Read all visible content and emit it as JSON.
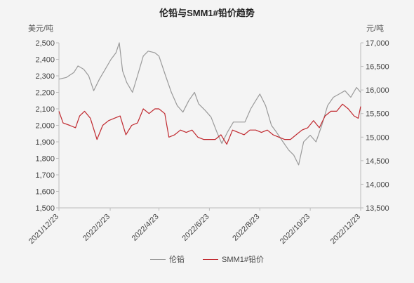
{
  "chart_data": {
    "type": "line",
    "title": "伦铅与SMM1#铅价趋势",
    "y_left_unit": "美元/吨",
    "y_right_unit": "元/吨",
    "y_left_lim": [
      1500,
      2500
    ],
    "y_right_lim": [
      13500,
      17000
    ],
    "y_left_ticks": [
      "1,500",
      "1,600",
      "1,700",
      "1,800",
      "1,900",
      "2,000",
      "2,100",
      "2,200",
      "2,300",
      "2,400",
      "2,500"
    ],
    "y_right_ticks": [
      "13,500",
      "14,000",
      "14,500",
      "15,000",
      "15,500",
      "16,000",
      "16,500",
      "17,000"
    ],
    "x_ticks": [
      "2021/12/23",
      "2022/2/23",
      "2022/4/23",
      "2022/6/23",
      "2022/8/23",
      "2022/10/23",
      "2022/12/23"
    ],
    "x_range": [
      "2021-12-23",
      "2022-12-23"
    ],
    "grid": false,
    "legend_position": "bottom",
    "series": [
      {
        "name": "伦铅",
        "axis": "left",
        "color": "#9a9a9a",
        "points": [
          [
            "2021-12-23",
            2280
          ],
          [
            "2022-01-01",
            2290
          ],
          [
            "2022-01-10",
            2320
          ],
          [
            "2022-01-15",
            2360
          ],
          [
            "2022-01-22",
            2340
          ],
          [
            "2022-01-28",
            2300
          ],
          [
            "2022-02-03",
            2210
          ],
          [
            "2022-02-10",
            2280
          ],
          [
            "2022-02-17",
            2340
          ],
          [
            "2022-02-24",
            2400
          ],
          [
            "2022-03-02",
            2440
          ],
          [
            "2022-03-06",
            2500
          ],
          [
            "2022-03-10",
            2330
          ],
          [
            "2022-03-15",
            2260
          ],
          [
            "2022-03-22",
            2200
          ],
          [
            "2022-03-28",
            2300
          ],
          [
            "2022-04-04",
            2420
          ],
          [
            "2022-04-10",
            2450
          ],
          [
            "2022-04-18",
            2440
          ],
          [
            "2022-04-23",
            2420
          ],
          [
            "2022-05-01",
            2300
          ],
          [
            "2022-05-08",
            2200
          ],
          [
            "2022-05-15",
            2120
          ],
          [
            "2022-05-22",
            2080
          ],
          [
            "2022-05-29",
            2150
          ],
          [
            "2022-06-05",
            2200
          ],
          [
            "2022-06-10",
            2130
          ],
          [
            "2022-06-18",
            2090
          ],
          [
            "2022-06-25",
            2050
          ],
          [
            "2022-07-02",
            1960
          ],
          [
            "2022-07-08",
            1890
          ],
          [
            "2022-07-15",
            1960
          ],
          [
            "2022-07-22",
            2020
          ],
          [
            "2022-07-29",
            2020
          ],
          [
            "2022-08-05",
            2020
          ],
          [
            "2022-08-12",
            2100
          ],
          [
            "2022-08-18",
            2150
          ],
          [
            "2022-08-23",
            2190
          ],
          [
            "2022-08-30",
            2120
          ],
          [
            "2022-09-06",
            2000
          ],
          [
            "2022-09-12",
            1960
          ],
          [
            "2022-09-20",
            1900
          ],
          [
            "2022-09-27",
            1850
          ],
          [
            "2022-10-03",
            1820
          ],
          [
            "2022-10-09",
            1760
          ],
          [
            "2022-10-15",
            1900
          ],
          [
            "2022-10-23",
            1940
          ],
          [
            "2022-10-30",
            1900
          ],
          [
            "2022-11-06",
            2000
          ],
          [
            "2022-11-13",
            2120
          ],
          [
            "2022-11-20",
            2170
          ],
          [
            "2022-11-27",
            2190
          ],
          [
            "2022-12-04",
            2210
          ],
          [
            "2022-12-11",
            2170
          ],
          [
            "2022-12-18",
            2230
          ],
          [
            "2022-12-23",
            2200
          ]
        ]
      },
      {
        "name": "SMM1#铅价",
        "axis": "right",
        "color": "#c0282e",
        "points": [
          [
            "2021-12-23",
            15550
          ],
          [
            "2021-12-28",
            15300
          ],
          [
            "2022-01-05",
            15250
          ],
          [
            "2022-01-12",
            15200
          ],
          [
            "2022-01-17",
            15450
          ],
          [
            "2022-01-23",
            15550
          ],
          [
            "2022-01-30",
            15400
          ],
          [
            "2022-02-07",
            14950
          ],
          [
            "2022-02-14",
            15250
          ],
          [
            "2022-02-21",
            15350
          ],
          [
            "2022-02-28",
            15400
          ],
          [
            "2022-03-07",
            15450
          ],
          [
            "2022-03-14",
            15050
          ],
          [
            "2022-03-21",
            15250
          ],
          [
            "2022-03-28",
            15300
          ],
          [
            "2022-04-04",
            15600
          ],
          [
            "2022-04-11",
            15500
          ],
          [
            "2022-04-18",
            15600
          ],
          [
            "2022-04-23",
            15600
          ],
          [
            "2022-04-30",
            15500
          ],
          [
            "2022-05-05",
            15000
          ],
          [
            "2022-05-12",
            15050
          ],
          [
            "2022-05-19",
            15150
          ],
          [
            "2022-05-26",
            15100
          ],
          [
            "2022-06-02",
            15150
          ],
          [
            "2022-06-09",
            15000
          ],
          [
            "2022-06-16",
            14950
          ],
          [
            "2022-06-23",
            14950
          ],
          [
            "2022-06-30",
            14950
          ],
          [
            "2022-07-07",
            15050
          ],
          [
            "2022-07-14",
            14850
          ],
          [
            "2022-07-21",
            15150
          ],
          [
            "2022-07-28",
            15100
          ],
          [
            "2022-08-04",
            15050
          ],
          [
            "2022-08-11",
            15150
          ],
          [
            "2022-08-18",
            15150
          ],
          [
            "2022-08-25",
            15100
          ],
          [
            "2022-09-01",
            15150
          ],
          [
            "2022-09-08",
            15050
          ],
          [
            "2022-09-15",
            15000
          ],
          [
            "2022-09-22",
            14950
          ],
          [
            "2022-09-29",
            14950
          ],
          [
            "2022-10-06",
            15050
          ],
          [
            "2022-10-13",
            15150
          ],
          [
            "2022-10-20",
            15200
          ],
          [
            "2022-10-27",
            15350
          ],
          [
            "2022-11-03",
            15200
          ],
          [
            "2022-11-10",
            15450
          ],
          [
            "2022-11-17",
            15550
          ],
          [
            "2022-11-24",
            15550
          ],
          [
            "2022-12-01",
            15700
          ],
          [
            "2022-12-08",
            15600
          ],
          [
            "2022-12-15",
            15450
          ],
          [
            "2022-12-20",
            15400
          ],
          [
            "2022-12-23",
            15650
          ]
        ]
      }
    ]
  }
}
